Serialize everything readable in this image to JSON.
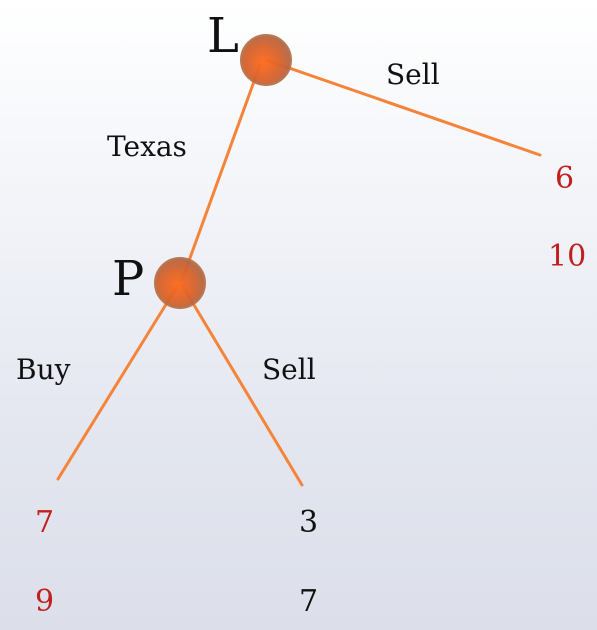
{
  "nodes": {
    "L": {
      "label": "L"
    },
    "P": {
      "label": "P"
    }
  },
  "edges": {
    "L_sell": {
      "label": "Sell"
    },
    "L_texas": {
      "label": "Texas"
    },
    "P_buy": {
      "label": "Buy"
    },
    "P_sell": {
      "label": "Sell"
    }
  },
  "payoffs": {
    "L_sell": {
      "first": "6",
      "second": "10"
    },
    "P_buy": {
      "first": "7",
      "second": "9"
    },
    "P_sell": {
      "first": "3",
      "second": "7"
    }
  },
  "colors": {
    "edge": "#f5833a",
    "node_fill": "#d9622a",
    "node_ring": "#b86a3e",
    "payoff_red": "#c0201e",
    "payoff_black": "#111111"
  }
}
